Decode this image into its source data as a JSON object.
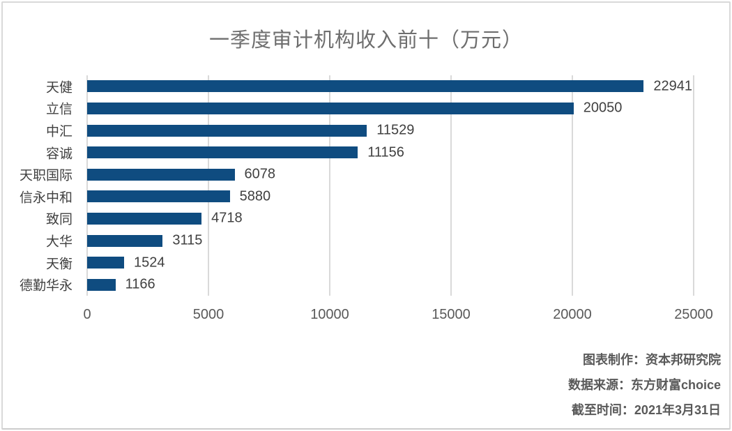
{
  "chart_data": {
    "type": "bar",
    "orientation": "horizontal",
    "title": "一季度审计机构收入前十（万元）",
    "categories": [
      "天健",
      "立信",
      "中汇",
      "容诚",
      "天职国际",
      "信永中和",
      "致同",
      "大华",
      "天衡",
      "德勤华永"
    ],
    "values": [
      22941,
      20050,
      11529,
      11156,
      6078,
      5880,
      4718,
      3115,
      1524,
      1166
    ],
    "value_labels_shown": true,
    "xlabel": "",
    "ylabel": "",
    "xlim": [
      0,
      25000
    ],
    "x_ticks": [
      0,
      5000,
      10000,
      15000,
      20000,
      25000
    ],
    "grid": "vertical-only",
    "legend": "none"
  },
  "footer": {
    "lines": [
      "图表制作：资本邦研究院",
      "数据来源：东方财富choice",
      "截至时间：2021年3月31日"
    ]
  },
  "colors": {
    "bar": "#0f4c80",
    "gridline": "#d9d9d9",
    "title_text": "#6e6e6e",
    "label_text": "#404040",
    "tick_text": "#595959",
    "footer_text": "#595959",
    "frame_border": "#d9d9d9",
    "background": "#ffffff"
  }
}
